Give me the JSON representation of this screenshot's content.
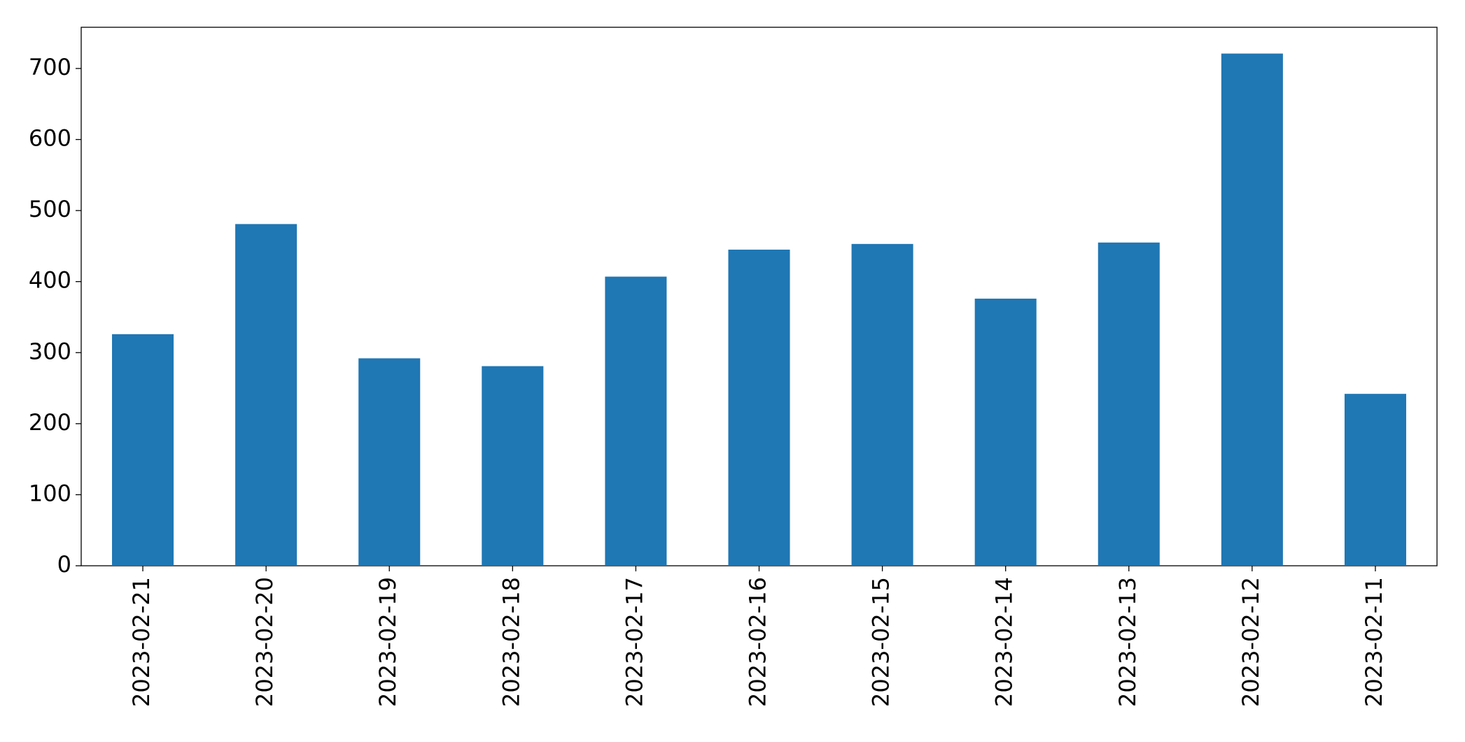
{
  "chart_data": {
    "type": "bar",
    "categories": [
      "2023-02-21",
      "2023-02-20",
      "2023-02-19",
      "2023-02-18",
      "2023-02-17",
      "2023-02-16",
      "2023-02-15",
      "2023-02-14",
      "2023-02-13",
      "2023-02-12",
      "2023-02-11"
    ],
    "values": [
      326,
      481,
      292,
      281,
      407,
      445,
      453,
      376,
      455,
      721,
      242
    ],
    "color": "#1f77b4",
    "ylim": [
      0,
      758
    ],
    "yticks": [
      0,
      100,
      200,
      300,
      400,
      500,
      600,
      700
    ],
    "grid": false
  }
}
